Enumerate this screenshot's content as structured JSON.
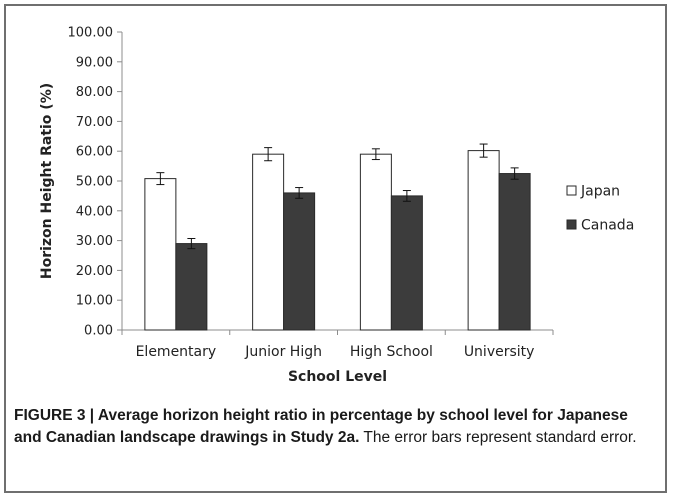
{
  "chart_data": {
    "type": "bar",
    "categories": [
      "Elementary",
      "Junior High",
      "High School",
      "University"
    ],
    "series": [
      {
        "name": "Japan",
        "values": [
          50.8,
          59.0,
          59.0,
          60.2
        ],
        "errors": [
          2.0,
          2.2,
          1.8,
          2.2
        ],
        "color": "#ffffff"
      },
      {
        "name": "Canada",
        "values": [
          29.0,
          46.0,
          45.0,
          52.5
        ],
        "errors": [
          1.7,
          1.8,
          1.8,
          1.9
        ],
        "color": "#3c3c3c"
      }
    ],
    "xlabel": "School Level",
    "ylabel": "Horizon Height Ratio (%)",
    "ylim": [
      0,
      100
    ],
    "yticks": [
      "0.00",
      "10.00",
      "20.00",
      "30.00",
      "40.00",
      "50.00",
      "60.00",
      "70.00",
      "80.00",
      "90.00",
      "100.00"
    ],
    "legend_position": "right",
    "grid": false
  },
  "caption": {
    "lead": "FIGURE 3 | Average horizon height ratio in percentage by school level for Japanese and Canadian landscape drawings in Study 2a.",
    "rest": " The error bars represent standard error."
  }
}
